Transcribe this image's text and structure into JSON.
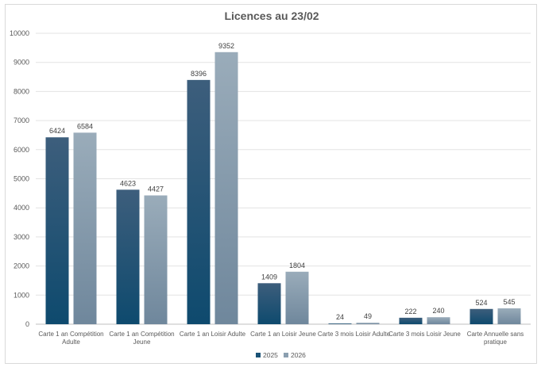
{
  "chart_data": {
    "type": "bar",
    "title": "Licences au 23/02",
    "categories": [
      [
        "Carte 1 an Compétition",
        "Adulte"
      ],
      [
        "Carte 1 an Compétition",
        "Jeune"
      ],
      [
        "Carte 1 an Loisir Adulte"
      ],
      [
        "Carte 1 an Loisir Jeune"
      ],
      [
        "Carte 3 mois Loisir Adulte"
      ],
      [
        "Carte 3 mois Loisir Jeune"
      ],
      [
        "Carte Annuelle sans",
        "pratique"
      ]
    ],
    "series": [
      {
        "name": "2025",
        "values": [
          6424,
          4623,
          8396,
          1409,
          24,
          222,
          524
        ],
        "color": "#1a5276"
      },
      {
        "name": "2026",
        "values": [
          6584,
          4427,
          9352,
          1804,
          49,
          240,
          545
        ],
        "color": "#8b9fb0"
      }
    ],
    "ylim": [
      0,
      10000
    ],
    "yticks": [
      0,
      1000,
      2000,
      3000,
      4000,
      5000,
      6000,
      7000,
      8000,
      9000,
      10000
    ],
    "grid": true,
    "legend_position": "bottom"
  }
}
